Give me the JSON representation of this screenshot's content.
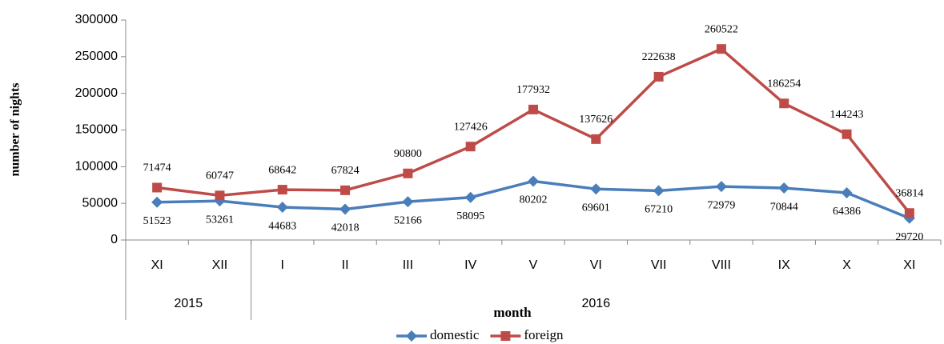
{
  "chart_data": {
    "type": "line",
    "x_label": "month",
    "y_label": "number of nights",
    "categories": [
      "XI",
      "XII",
      "I",
      "II",
      "III",
      "IV",
      "V",
      "VI",
      "VII",
      "VIII",
      "IX",
      "X",
      "XI"
    ],
    "groups": [
      {
        "label": "2015",
        "span": 2
      },
      {
        "label": "2016",
        "span": 11
      }
    ],
    "series": [
      {
        "name": "domestic",
        "color": "#4a7ebb",
        "marker": "diamond",
        "label_position": "below",
        "values": [
          51523,
          53261,
          44683,
          42018,
          52166,
          58095,
          80202,
          69601,
          67210,
          72979,
          70844,
          64386,
          29720
        ]
      },
      {
        "name": "foreign",
        "color": "#be4b48",
        "marker": "square",
        "label_position": "above",
        "values": [
          71474,
          60747,
          68642,
          67824,
          90800,
          127426,
          177932,
          137626,
          222638,
          260522,
          186254,
          144243,
          36814
        ]
      }
    ],
    "ylim": [
      0,
      300000
    ],
    "yticks": [
      0,
      50000,
      100000,
      150000,
      200000,
      250000,
      300000
    ],
    "legend": "bottom"
  }
}
